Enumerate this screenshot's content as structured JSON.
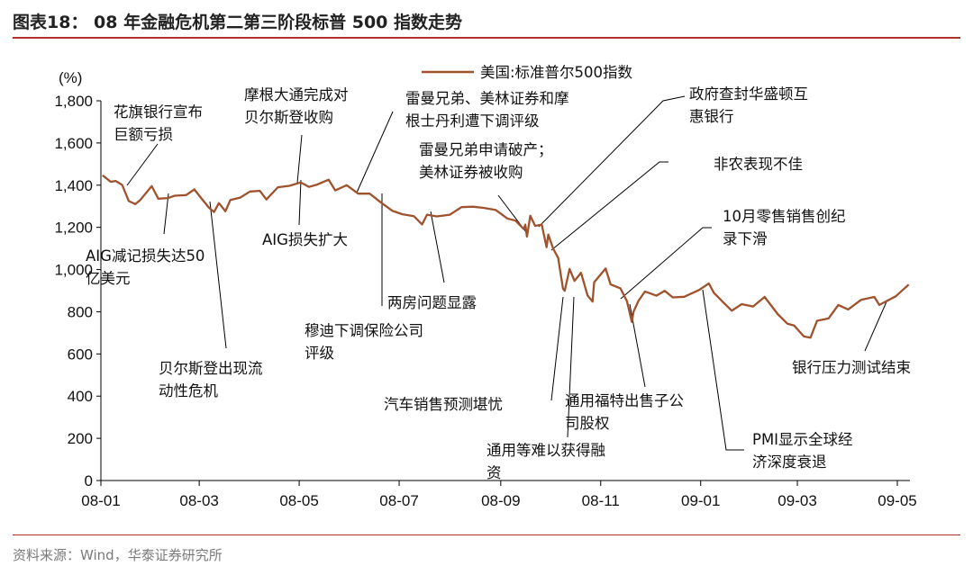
{
  "header": {
    "title": "图表18：  08 年金融危机第二第三阶段标普 500 指数走势"
  },
  "footer": {
    "source": "资料来源：Wind，华泰证券研究所"
  },
  "chart_data": {
    "type": "line",
    "unit": "(%)",
    "x_ticks": [
      "08-01",
      "08-03",
      "08-05",
      "08-07",
      "08-09",
      "08-11",
      "09-01",
      "09-03",
      "09-05"
    ],
    "y_ticks": [
      "0",
      "200",
      "400",
      "600",
      "800",
      "1,000",
      "1,200",
      "1,400",
      "1,600",
      "1,800"
    ],
    "ylim": [
      0,
      1800
    ],
    "grid": false,
    "legend_position": "top-right",
    "series": [
      {
        "name": "美国:标准普尔500指数",
        "color": "#a0522d",
        "points": [
          [
            "2008-01-02",
            1447
          ],
          [
            "2008-01-07",
            1416
          ],
          [
            "2008-01-10",
            1420
          ],
          [
            "2008-01-14",
            1401
          ],
          [
            "2008-01-18",
            1325
          ],
          [
            "2008-01-22",
            1310
          ],
          [
            "2008-01-25",
            1330
          ],
          [
            "2008-02-01",
            1395
          ],
          [
            "2008-02-05",
            1336
          ],
          [
            "2008-02-11",
            1339
          ],
          [
            "2008-02-15",
            1350
          ],
          [
            "2008-02-22",
            1353
          ],
          [
            "2008-02-27",
            1380
          ],
          [
            "2008-03-03",
            1331
          ],
          [
            "2008-03-07",
            1293
          ],
          [
            "2008-03-10",
            1273
          ],
          [
            "2008-03-13",
            1315
          ],
          [
            "2008-03-17",
            1276
          ],
          [
            "2008-03-20",
            1330
          ],
          [
            "2008-03-26",
            1341
          ],
          [
            "2008-04-01",
            1370
          ],
          [
            "2008-04-07",
            1373
          ],
          [
            "2008-04-11",
            1332
          ],
          [
            "2008-04-18",
            1390
          ],
          [
            "2008-04-25",
            1397
          ],
          [
            "2008-05-02",
            1413
          ],
          [
            "2008-05-07",
            1392
          ],
          [
            "2008-05-12",
            1403
          ],
          [
            "2008-05-19",
            1426
          ],
          [
            "2008-05-23",
            1375
          ],
          [
            "2008-05-30",
            1400
          ],
          [
            "2008-06-06",
            1360
          ],
          [
            "2008-06-13",
            1360
          ],
          [
            "2008-06-20",
            1317
          ],
          [
            "2008-06-27",
            1278
          ],
          [
            "2008-07-03",
            1262
          ],
          [
            "2008-07-10",
            1253
          ],
          [
            "2008-07-15",
            1214
          ],
          [
            "2008-07-18",
            1260
          ],
          [
            "2008-07-24",
            1252
          ],
          [
            "2008-08-01",
            1260
          ],
          [
            "2008-08-08",
            1296
          ],
          [
            "2008-08-15",
            1298
          ],
          [
            "2008-08-22",
            1292
          ],
          [
            "2008-08-29",
            1282
          ],
          [
            "2008-09-05",
            1242
          ],
          [
            "2008-09-10",
            1232
          ],
          [
            "2008-09-15",
            1192
          ],
          [
            "2008-09-16",
            1213
          ],
          [
            "2008-09-17",
            1156
          ],
          [
            "2008-09-19",
            1255
          ],
          [
            "2008-09-22",
            1207
          ],
          [
            "2008-09-26",
            1213
          ],
          [
            "2008-09-29",
            1106
          ],
          [
            "2008-09-30",
            1166
          ],
          [
            "2008-10-03",
            1099
          ],
          [
            "2008-10-06",
            1056
          ],
          [
            "2008-10-09",
            910
          ],
          [
            "2008-10-10",
            899
          ],
          [
            "2008-10-13",
            1003
          ],
          [
            "2008-10-16",
            946
          ],
          [
            "2008-10-20",
            985
          ],
          [
            "2008-10-24",
            877
          ],
          [
            "2008-10-27",
            848
          ],
          [
            "2008-10-28",
            940
          ],
          [
            "2008-10-31",
            968
          ],
          [
            "2008-11-04",
            1005
          ],
          [
            "2008-11-07",
            930
          ],
          [
            "2008-11-13",
            911
          ],
          [
            "2008-11-17",
            850
          ],
          [
            "2008-11-20",
            752
          ],
          [
            "2008-11-21",
            800
          ],
          [
            "2008-11-24",
            851
          ],
          [
            "2008-11-28",
            896
          ],
          [
            "2008-12-05",
            876
          ],
          [
            "2008-12-10",
            899
          ],
          [
            "2008-12-15",
            868
          ],
          [
            "2008-12-22",
            871
          ],
          [
            "2008-12-31",
            903
          ],
          [
            "2009-01-06",
            934
          ],
          [
            "2009-01-09",
            890
          ],
          [
            "2009-01-15",
            843
          ],
          [
            "2009-01-20",
            805
          ],
          [
            "2009-01-26",
            836
          ],
          [
            "2009-02-02",
            825
          ],
          [
            "2009-02-09",
            870
          ],
          [
            "2009-02-17",
            789
          ],
          [
            "2009-02-23",
            743
          ],
          [
            "2009-02-27",
            735
          ],
          [
            "2009-03-05",
            683
          ],
          [
            "2009-03-09",
            677
          ],
          [
            "2009-03-13",
            757
          ],
          [
            "2009-03-20",
            768
          ],
          [
            "2009-03-26",
            832
          ],
          [
            "2009-04-01",
            811
          ],
          [
            "2009-04-09",
            857
          ],
          [
            "2009-04-17",
            870
          ],
          [
            "2009-04-20",
            832
          ],
          [
            "2009-04-30",
            873
          ],
          [
            "2009-05-08",
            929
          ]
        ]
      }
    ],
    "annotations": [
      {
        "id": "citi",
        "lines": [
          "花旗银行宣布",
          "巨额亏损"
        ]
      },
      {
        "id": "aig-writedown",
        "lines": [
          "AIG减记损失达50",
          "亿美元"
        ]
      },
      {
        "id": "bear-liquidity",
        "lines": [
          "贝尔斯登出现流",
          "动性危机"
        ]
      },
      {
        "id": "jpm-bear",
        "lines": [
          "摩根大通完成对",
          "贝尔斯登收购"
        ]
      },
      {
        "id": "aig-loss",
        "lines": [
          "AIG损失扩大"
        ]
      },
      {
        "id": "moodys",
        "lines": [
          "穆迪下调保险公司",
          "评级"
        ]
      },
      {
        "id": "gse",
        "lines": [
          "两房问题显露"
        ]
      },
      {
        "id": "lehman-ml-dg",
        "lines": [
          "雷曼兄弟、美林证券和摩",
          "根士丹利遭下调评级"
        ]
      },
      {
        "id": "lehman-bk",
        "lines": [
          "雷曼兄弟申请破产；",
          "美林证券被收购"
        ]
      },
      {
        "id": "wamu",
        "lines": [
          "政府查封华盛顿互",
          "惠银行"
        ]
      },
      {
        "id": "nfp",
        "lines": [
          "非农表现不佳"
        ]
      },
      {
        "id": "auto-sales",
        "lines": [
          "汽车销售预测堪忧"
        ]
      },
      {
        "id": "gm-financing",
        "lines": [
          "通用等难以获得融",
          "资"
        ]
      },
      {
        "id": "gm-stake",
        "lines": [
          "通用福特出售子公",
          "司股权"
        ]
      },
      {
        "id": "retail",
        "lines": [
          "10月零售销售创纪",
          "录下滑"
        ]
      },
      {
        "id": "pmi",
        "lines": [
          "PMI显示全球经",
          "济深度衰退"
        ]
      },
      {
        "id": "stress-test",
        "lines": [
          "银行压力测试结束"
        ]
      }
    ]
  }
}
